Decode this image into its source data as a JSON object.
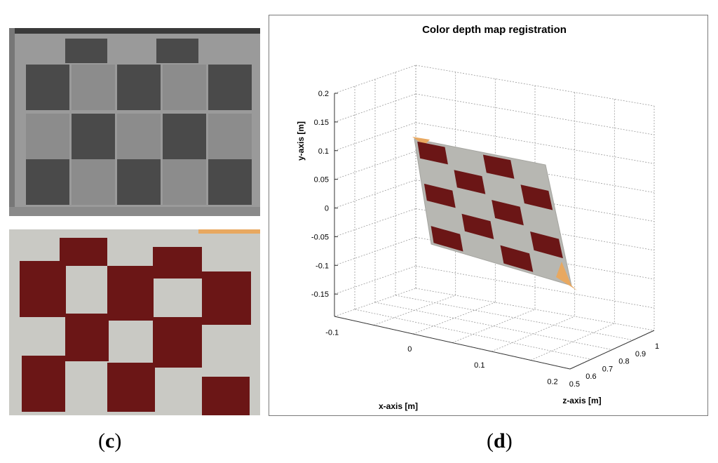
{
  "captions": {
    "c": "c",
    "d": "d"
  },
  "colors": {
    "checker_dark": "#6b1616",
    "checker_light": "#c9c9c4",
    "gray_dark": "#4a4a4a",
    "gray_light": "#8c8c8c",
    "orange_edge": "#e8a860"
  },
  "chart_data": {
    "type": "scatter3d",
    "title": "Color depth map registration",
    "xlabel": "x-axis [m]",
    "ylabel": "y-axis [m]",
    "zlabel": "z-axis [m]",
    "x_ticks": [
      "-0.1",
      "0",
      "0.1",
      "0.2"
    ],
    "y_ticks": [
      "0.2",
      "0.15",
      "0.1",
      "0.05",
      "0",
      "-0.05",
      "-0.1",
      "-0.15"
    ],
    "z_ticks": [
      "0.5",
      "0.6",
      "0.7",
      "0.8",
      "0.9",
      "1"
    ],
    "xlim": [
      -0.12,
      0.22
    ],
    "ylim": [
      -0.18,
      0.22
    ],
    "zlim": [
      0.45,
      1.0
    ],
    "grid": true,
    "checkerboard": {
      "rows": 5,
      "cols": 4
    }
  }
}
